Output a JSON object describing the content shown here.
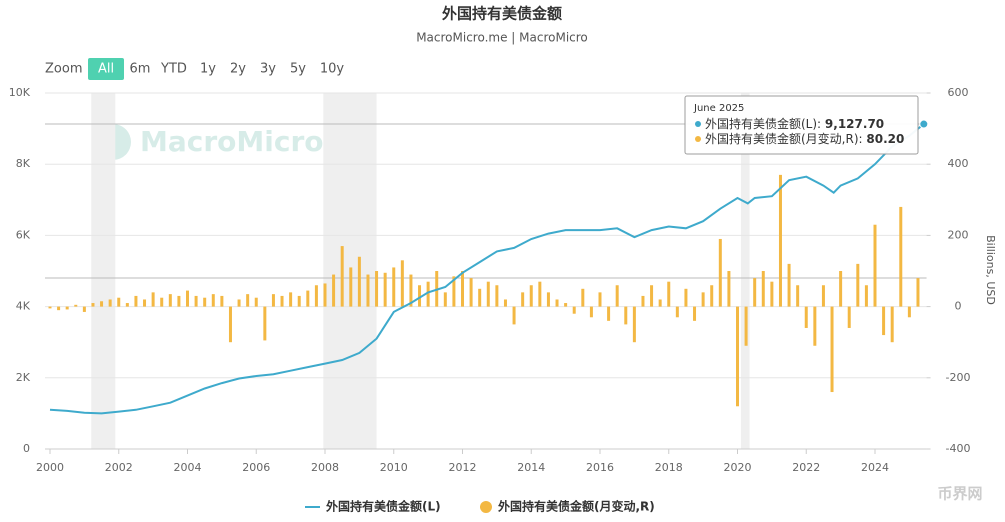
{
  "chart_data": {
    "type": "line-bar",
    "title": "外国持有美债金额",
    "subtitle": "MacroMicro.me | MacroMicro",
    "watermark": "MacroMicro",
    "corner_watermark": "币界网",
    "zoom_label": "Zoom",
    "zoom_buttons": [
      "All",
      "6m",
      "YTD",
      "1y",
      "2y",
      "3y",
      "5y",
      "10y"
    ],
    "zoom_active": 0,
    "y2_label": "Billions, USD",
    "xlim": [
      2000,
      2025.5
    ],
    "xticks": [
      2000,
      2002,
      2004,
      2006,
      2008,
      2010,
      2012,
      2014,
      2016,
      2018,
      2020,
      2022,
      2024
    ],
    "ylim": [
      0,
      10000
    ],
    "yticks": [
      0,
      {
        "value": 2000,
        "label": "2K"
      },
      {
        "value": 4000,
        "label": "4K"
      },
      {
        "value": 6000,
        "label": "6K"
      },
      {
        "value": 8000,
        "label": "8K"
      },
      {
        "value": 10000,
        "label": "10K"
      }
    ],
    "y2lim": [
      -400,
      600
    ],
    "y2ticks": [
      -400,
      -200,
      0,
      200,
      400,
      600
    ],
    "grid": true,
    "shaded_periods": [
      [
        2001.2,
        2001.9
      ],
      [
        2007.95,
        2009.5
      ],
      [
        2020.1,
        2020.35
      ]
    ],
    "series": [
      {
        "name": "外国持有美债金额(L)",
        "color": "#3eaacc",
        "kind": "line",
        "x": [
          2000.0,
          2000.5,
          2001.0,
          2001.5,
          2002.0,
          2002.5,
          2003.0,
          2003.5,
          2004.0,
          2004.5,
          2005.0,
          2005.5,
          2006.0,
          2006.5,
          2007.0,
          2007.5,
          2008.0,
          2008.5,
          2009.0,
          2009.5,
          2010.0,
          2010.5,
          2011.0,
          2011.5,
          2012.0,
          2012.5,
          2013.0,
          2013.5,
          2014.0,
          2014.5,
          2015.0,
          2015.5,
          2016.0,
          2016.5,
          2017.0,
          2017.5,
          2018.0,
          2018.5,
          2019.0,
          2019.5,
          2020.0,
          2020.3,
          2020.5,
          2021.0,
          2021.5,
          2022.0,
          2022.5,
          2022.8,
          2023.0,
          2023.5,
          2024.0,
          2024.5,
          2025.0,
          2025.42
        ],
        "values": [
          1100,
          1070,
          1020,
          1000,
          1050,
          1100,
          1200,
          1300,
          1500,
          1700,
          1850,
          1980,
          2050,
          2100,
          2200,
          2300,
          2400,
          2500,
          2700,
          3100,
          3850,
          4100,
          4400,
          4550,
          4950,
          5250,
          5550,
          5650,
          5900,
          6050,
          6150,
          6150,
          6150,
          6200,
          5950,
          6150,
          6250,
          6200,
          6400,
          6750,
          7050,
          6900,
          7050,
          7100,
          7550,
          7650,
          7400,
          7200,
          7400,
          7600,
          8000,
          8500,
          8800,
          9127.7
        ]
      },
      {
        "name": "外国持有美债金额(月变动,R)",
        "color": "#f3b843",
        "kind": "bar",
        "axis": "y2",
        "x": [
          2000,
          2000.25,
          2000.5,
          2000.75,
          2001,
          2001.25,
          2001.5,
          2001.75,
          2002,
          2002.25,
          2002.5,
          2002.75,
          2003,
          2003.25,
          2003.5,
          2003.75,
          2004,
          2004.25,
          2004.5,
          2004.75,
          2005,
          2005.25,
          2005.5,
          2005.75,
          2006,
          2006.25,
          2006.5,
          2006.75,
          2007,
          2007.25,
          2007.5,
          2007.75,
          2008,
          2008.25,
          2008.5,
          2008.75,
          2009,
          2009.25,
          2009.5,
          2009.75,
          2010,
          2010.25,
          2010.5,
          2010.75,
          2011,
          2011.25,
          2011.5,
          2011.75,
          2012,
          2012.25,
          2012.5,
          2012.75,
          2013,
          2013.25,
          2013.5,
          2013.75,
          2014,
          2014.25,
          2014.5,
          2014.75,
          2015,
          2015.25,
          2015.5,
          2015.75,
          2016,
          2016.25,
          2016.5,
          2016.75,
          2017,
          2017.25,
          2017.5,
          2017.75,
          2018,
          2018.25,
          2018.5,
          2018.75,
          2019,
          2019.25,
          2019.5,
          2019.75,
          2020,
          2020.25,
          2020.5,
          2020.75,
          2021,
          2021.25,
          2021.5,
          2021.75,
          2022,
          2022.25,
          2022.5,
          2022.75,
          2023,
          2023.25,
          2023.5,
          2023.75,
          2024,
          2024.25,
          2024.5,
          2024.75,
          2025,
          2025.25
        ],
        "values": [
          -5,
          -10,
          -8,
          5,
          -15,
          10,
          15,
          20,
          25,
          10,
          30,
          20,
          40,
          25,
          35,
          30,
          45,
          30,
          25,
          35,
          30,
          -100,
          20,
          35,
          25,
          -95,
          35,
          30,
          40,
          30,
          45,
          60,
          65,
          90,
          170,
          110,
          140,
          90,
          100,
          95,
          110,
          130,
          90,
          60,
          70,
          100,
          40,
          85,
          100,
          80,
          50,
          70,
          60,
          20,
          -50,
          40,
          60,
          70,
          40,
          20,
          10,
          -20,
          50,
          -30,
          40,
          -40,
          60,
          -50,
          -100,
          30,
          60,
          20,
          70,
          -30,
          50,
          -40,
          40,
          60,
          190,
          100,
          -280,
          -110,
          80,
          100,
          70,
          370,
          120,
          60,
          -60,
          -110,
          60,
          -240,
          100,
          -60,
          120,
          60,
          230,
          -80,
          -100,
          280,
          -30,
          80
        ]
      }
    ],
    "tooltip": {
      "title": "June 2025",
      "items": [
        {
          "label": "外国持有美债金额(L):",
          "value": 9127.7,
          "value_label": "9,127.70"
        },
        {
          "label": "外国持有美债金额(月变动,R):",
          "value": 80.2,
          "value_label": "80.20"
        }
      ]
    }
  }
}
